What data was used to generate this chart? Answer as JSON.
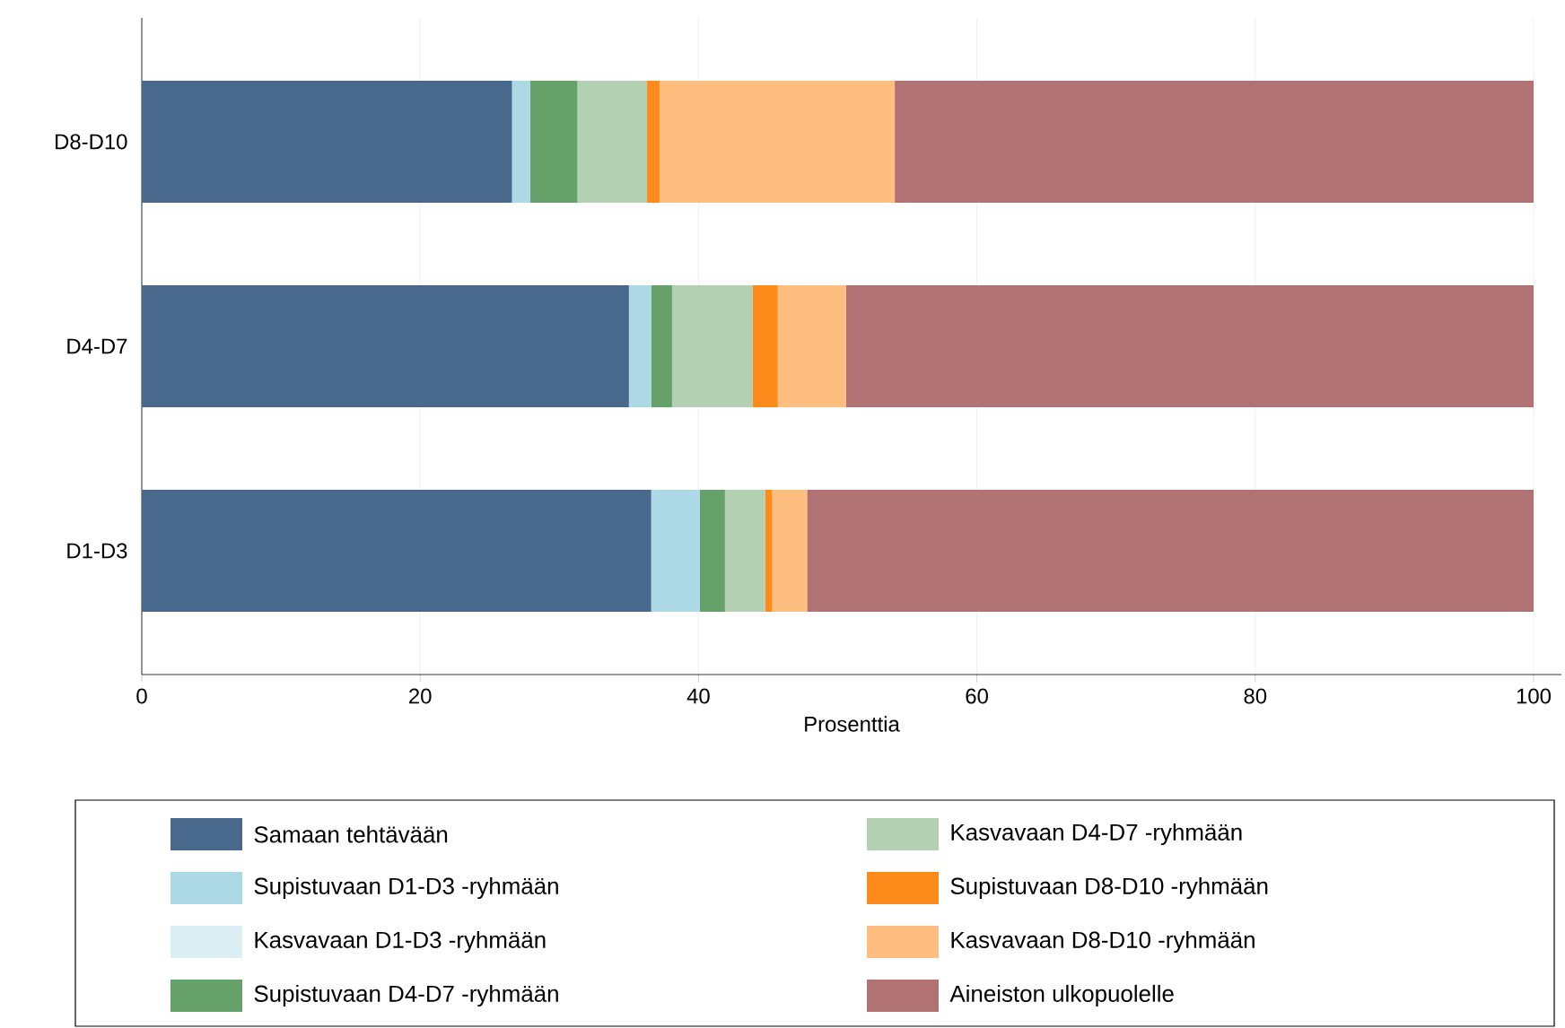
{
  "chart_data": {
    "type": "bar",
    "orientation": "horizontal",
    "stacked": true,
    "categories": [
      "D8-D10",
      "D4-D7",
      "D1-D3"
    ],
    "xlabel": "Prosenttia",
    "xlim": [
      0,
      102
    ],
    "xticks": [
      0,
      20,
      40,
      60,
      80,
      100
    ],
    "grid": "x",
    "legend": "bottom",
    "series": [
      {
        "name": "Samaan tehtävään",
        "color": "#48698b",
        "values": [
          26.6,
          35.0,
          36.6
        ]
      },
      {
        "name": "Supistuvaan D1-D3 -ryhmään",
        "color": "#add8e6",
        "values": [
          1.3,
          1.6,
          3.5
        ]
      },
      {
        "name": "Kasvavaan D1-D3 -ryhmään",
        "color": "#dbeef4",
        "values": [
          0,
          0,
          0
        ]
      },
      {
        "name": "Supistuvaan D4-D7 -ryhmään",
        "color": "#65a168",
        "values": [
          3.4,
          1.5,
          1.8
        ]
      },
      {
        "name": "Kasvavaan D4-D7 -ryhmään",
        "color": "#b3d0b3",
        "values": [
          5.0,
          5.8,
          2.9
        ]
      },
      {
        "name": "Supistuvaan D8-D10 -ryhmään",
        "color": "#fd8b1c",
        "values": [
          0.9,
          1.8,
          0.5
        ]
      },
      {
        "name": "Kasvavaan D8-D10 -ryhmään",
        "color": "#febe80",
        "values": [
          16.9,
          4.9,
          2.5
        ]
      },
      {
        "name": "Aineiston ulkopuolelle",
        "color": "#b07273",
        "values": [
          45.9,
          49.4,
          52.2
        ]
      }
    ]
  }
}
